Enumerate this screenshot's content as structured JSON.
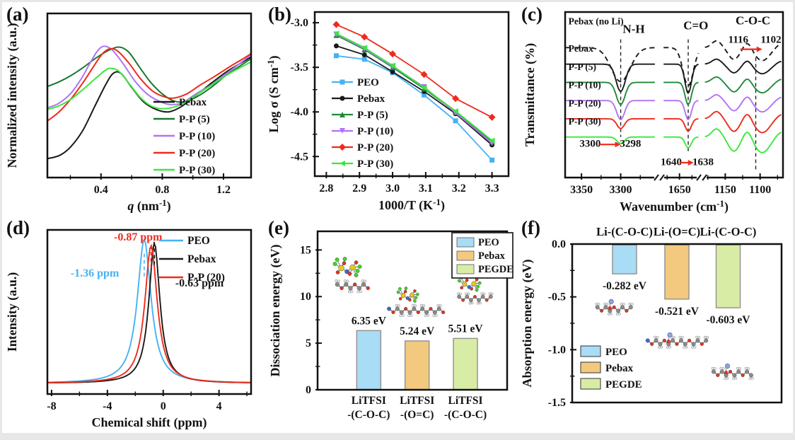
{
  "figure": {
    "background": "#ffffff",
    "frame_color": "#e7e7e7",
    "panel_letters": {
      "a": "(a)",
      "b": "(b)",
      "c": "(c)",
      "d": "(d)",
      "e": "(e)",
      "f": "(f)"
    }
  },
  "chart_data": [
    {
      "panel": "a",
      "type": "line",
      "xlabel": [
        "q (nm",
        "-1",
        ")"
      ],
      "xlabel_italic_first": true,
      "ylabel": "Normalized intensity (a.u.)",
      "xlim": [
        0.05,
        1.38
      ],
      "xticks": [
        0.4,
        0.8,
        1.2
      ],
      "xminor": [
        0.2,
        0.6,
        1.0
      ],
      "grid": false,
      "legend_position": "bottom-right",
      "series": [
        {
          "name": "Pebax",
          "color": "#1a1a1a",
          "points": [
            [
              0.05,
              0.115
            ],
            [
              0.13,
              0.135
            ],
            [
              0.2,
              0.185
            ],
            [
              0.28,
              0.285
            ],
            [
              0.36,
              0.435
            ],
            [
              0.43,
              0.565
            ],
            [
              0.48,
              0.635
            ],
            [
              0.53,
              0.635
            ],
            [
              0.6,
              0.55
            ],
            [
              0.68,
              0.46
            ],
            [
              0.76,
              0.415
            ],
            [
              0.84,
              0.4
            ],
            [
              0.92,
              0.43
            ],
            [
              1.02,
              0.5
            ],
            [
              1.12,
              0.575
            ],
            [
              1.22,
              0.645
            ],
            [
              1.3,
              0.69
            ],
            [
              1.38,
              0.735
            ]
          ]
        },
        {
          "name": "P-P (5)",
          "color": "#177A2E",
          "points": [
            [
              0.05,
              0.555
            ],
            [
              0.13,
              0.585
            ],
            [
              0.21,
              0.625
            ],
            [
              0.29,
              0.675
            ],
            [
              0.37,
              0.73
            ],
            [
              0.45,
              0.775
            ],
            [
              0.52,
              0.795
            ],
            [
              0.58,
              0.765
            ],
            [
              0.65,
              0.675
            ],
            [
              0.72,
              0.585
            ],
            [
              0.8,
              0.51
            ],
            [
              0.88,
              0.465
            ],
            [
              0.96,
              0.465
            ],
            [
              1.04,
              0.5
            ],
            [
              1.12,
              0.55
            ],
            [
              1.22,
              0.625
            ],
            [
              1.3,
              0.675
            ],
            [
              1.38,
              0.725
            ]
          ]
        },
        {
          "name": "P-P (10)",
          "color": "#B273F2",
          "points": [
            [
              0.05,
              0.425
            ],
            [
              0.12,
              0.45
            ],
            [
              0.2,
              0.51
            ],
            [
              0.27,
              0.6
            ],
            [
              0.33,
              0.7
            ],
            [
              0.38,
              0.775
            ],
            [
              0.42,
              0.8
            ],
            [
              0.47,
              0.78
            ],
            [
              0.54,
              0.7
            ],
            [
              0.62,
              0.59
            ],
            [
              0.7,
              0.51
            ],
            [
              0.78,
              0.465
            ],
            [
              0.85,
              0.445
            ],
            [
              0.93,
              0.455
            ],
            [
              1.02,
              0.51
            ],
            [
              1.12,
              0.565
            ],
            [
              1.22,
              0.635
            ],
            [
              1.3,
              0.69
            ],
            [
              1.38,
              0.75
            ]
          ]
        },
        {
          "name": "P-P (20)",
          "color": "#EE2B1D",
          "points": [
            [
              0.05,
              0.345
            ],
            [
              0.12,
              0.395
            ],
            [
              0.2,
              0.475
            ],
            [
              0.28,
              0.575
            ],
            [
              0.35,
              0.675
            ],
            [
              0.41,
              0.755
            ],
            [
              0.46,
              0.785
            ],
            [
              0.51,
              0.77
            ],
            [
              0.58,
              0.7
            ],
            [
              0.66,
              0.6
            ],
            [
              0.74,
              0.525
            ],
            [
              0.82,
              0.49
            ],
            [
              0.88,
              0.485
            ],
            [
              0.96,
              0.51
            ],
            [
              1.05,
              0.565
            ],
            [
              1.14,
              0.615
            ],
            [
              1.24,
              0.675
            ],
            [
              1.32,
              0.72
            ],
            [
              1.38,
              0.755
            ]
          ]
        },
        {
          "name": "P-P (30)",
          "color": "#3BE83B",
          "points": [
            [
              0.05,
              0.415
            ],
            [
              0.12,
              0.435
            ],
            [
              0.2,
              0.475
            ],
            [
              0.28,
              0.535
            ],
            [
              0.36,
              0.6
            ],
            [
              0.43,
              0.655
            ],
            [
              0.47,
              0.665
            ],
            [
              0.52,
              0.645
            ],
            [
              0.59,
              0.565
            ],
            [
              0.66,
              0.485
            ],
            [
              0.73,
              0.435
            ],
            [
              0.8,
              0.42
            ],
            [
              0.88,
              0.43
            ],
            [
              0.96,
              0.465
            ],
            [
              1.05,
              0.52
            ],
            [
              1.14,
              0.575
            ],
            [
              1.24,
              0.635
            ],
            [
              1.32,
              0.675
            ],
            [
              1.38,
              0.705
            ]
          ]
        }
      ]
    },
    {
      "panel": "b",
      "type": "line",
      "xlabel": [
        "1000/T (K",
        "-1",
        ")"
      ],
      "ylabel": [
        "Log σ (S cm",
        "-1",
        ")"
      ],
      "xlim": [
        2.765,
        3.35
      ],
      "ylim": [
        -4.72,
        -2.88
      ],
      "xticks": [
        2.8,
        2.9,
        3.0,
        3.1,
        3.2,
        3.3
      ],
      "xminor": [
        2.85,
        2.95,
        3.05,
        3.15,
        3.25
      ],
      "yticks": [
        -3.0,
        -3.5,
        -4.0,
        -4.5
      ],
      "yminor": [
        -3.25,
        -3.75,
        -4.25
      ],
      "x": [
        2.83,
        2.915,
        3.0,
        3.095,
        3.19,
        3.3
      ],
      "series": [
        {
          "name": "PEO",
          "color": "#45B2F2",
          "marker": "square",
          "values": [
            -3.37,
            -3.41,
            -3.56,
            -3.81,
            -4.1,
            -4.54
          ]
        },
        {
          "name": "Pebax",
          "color": "#1a1a1a",
          "marker": "circle",
          "values": [
            -3.26,
            -3.36,
            -3.55,
            -3.77,
            -4.02,
            -4.37
          ]
        },
        {
          "name": "P-P (5)",
          "color": "#1E8B3A",
          "marker": "triangle-up",
          "values": [
            -3.14,
            -3.3,
            -3.5,
            -3.74,
            -4.0,
            -4.33
          ]
        },
        {
          "name": "P-P (10)",
          "color": "#B273F2",
          "marker": "triangle-down",
          "values": [
            -3.13,
            -3.29,
            -3.49,
            -3.72,
            -4.01,
            -4.35
          ]
        },
        {
          "name": "P-P (20)",
          "color": "#EE2B1D",
          "marker": "diamond",
          "values": [
            -3.02,
            -3.16,
            -3.35,
            -3.58,
            -3.85,
            -4.06
          ]
        },
        {
          "name": "P-P (30)",
          "color": "#3BE83B",
          "marker": "triangle-left",
          "values": [
            -3.12,
            -3.28,
            -3.48,
            -3.73,
            -3.99,
            -4.32
          ]
        }
      ]
    },
    {
      "panel": "c",
      "type": "line",
      "xlabel": [
        "Wavenumber (cm",
        "-1",
        ")"
      ],
      "ylabel": "Transmittance (%)",
      "xticks": [
        {
          "label": "3350",
          "f": 0.075
        },
        {
          "label": "3300",
          "f": 0.255
        },
        {
          "label": "1650",
          "f": 0.525
        },
        {
          "label": "1150",
          "f": 0.735
        },
        {
          "label": "1100",
          "f": 0.895
        }
      ],
      "xminor_f": [
        0.165,
        0.345,
        0.468,
        0.582,
        0.655,
        0.815,
        0.975
      ],
      "breaks_f": [
        0.432,
        0.627
      ],
      "guides": [
        {
          "f": 0.255,
          "y1": 0.165,
          "y2": 0.755
        },
        {
          "f": 0.565,
          "y1": 0.165,
          "y2": 0.85
        },
        {
          "f": 0.875,
          "y1": 0.275,
          "y2": 0.955
        }
      ],
      "annotations": [
        {
          "text": "N-H",
          "f": 0.315,
          "y": 0.125,
          "size": 17
        },
        {
          "text": "C=O",
          "f": 0.6,
          "y": 0.105,
          "size": 17
        },
        {
          "text": "C-O-C",
          "f": 0.862,
          "y": 0.075,
          "size": 17
        },
        {
          "text": "1116",
          "f": 0.795,
          "y": 0.185,
          "size": 15
        },
        {
          "text": "1102",
          "f": 0.945,
          "y": 0.185,
          "size": 15
        },
        {
          "text": "3300",
          "f": 0.115,
          "y": 0.815,
          "size": 15
        },
        {
          "text": "3298",
          "f": 0.3,
          "y": 0.815,
          "size": 15
        },
        {
          "text": "1640",
          "f": 0.487,
          "y": 0.925,
          "size": 15
        },
        {
          "text": "1638",
          "f": 0.633,
          "y": 0.925,
          "size": 15
        }
      ],
      "arrows": [
        {
          "x1f": 0.805,
          "x2f": 0.905,
          "y": 0.225
        },
        {
          "x1f": 0.158,
          "x2f": 0.255,
          "y": 0.8
        },
        {
          "x1f": 0.525,
          "x2f": 0.59,
          "y": 0.91
        }
      ],
      "traces": [
        {
          "label": "Pebax (no Li)",
          "color": "#1a1a1a",
          "dashed": true,
          "base": 0.215,
          "label_y": 0.075,
          "dipA": 0.205,
          "dipB": 0.23,
          "ampC": 0.075,
          "wA": 0.062,
          "wB": 0.034
        },
        {
          "label": "Pebax",
          "color": "#1a1a1a",
          "dashed": false,
          "base": 0.315,
          "label_y": 0.24,
          "dipA": 0.165,
          "dipB": 0.175,
          "ampC": 0.055,
          "wA": 0.03,
          "wB": 0.021
        },
        {
          "label": "P-P (5)",
          "color": "#1E8B3A",
          "dashed": false,
          "base": 0.425,
          "label_y": 0.35,
          "dipA": 0.135,
          "dipB": 0.135,
          "ampC": 0.06,
          "wA": 0.028,
          "wB": 0.02
        },
        {
          "label": "P-P (10)",
          "color": "#B273F2",
          "dashed": false,
          "base": 0.535,
          "label_y": 0.46,
          "dipA": 0.115,
          "dipB": 0.115,
          "ampC": 0.065,
          "wA": 0.026,
          "wB": 0.02
        },
        {
          "label": "P-P (20)",
          "color": "#EE2B1D",
          "dashed": false,
          "base": 0.645,
          "label_y": 0.57,
          "dipA": 0.06,
          "dipB": 0.075,
          "ampC": 0.08,
          "wA": 0.024,
          "wB": 0.02
        },
        {
          "label": "P-P (30)",
          "color": "#3BE83B",
          "dashed": false,
          "base": 0.755,
          "label_y": 0.68,
          "dipA": 0.04,
          "dipB": 0.065,
          "ampC": 0.09,
          "wA": 0.024,
          "wB": 0.02
        }
      ]
    },
    {
      "panel": "d",
      "type": "line",
      "xlabel": [
        "Chemical shift (ppm)"
      ],
      "ylabel": "Intensity (a.u.)",
      "xlim": [
        -8.3,
        6.3
      ],
      "xticks": [
        -8,
        -4,
        0,
        4
      ],
      "xminor": [
        -6,
        -2,
        2,
        6
      ],
      "baseline": 0.935,
      "series": [
        {
          "name": "PEO",
          "color": "#45B2F2",
          "peak_ppm": -1.36,
          "height": 0.875,
          "width": 0.6
        },
        {
          "name": "Pebax",
          "color": "#1a1a1a",
          "peak_ppm": -0.63,
          "height": 0.855,
          "width": 0.48
        },
        {
          "name": "P-P (20)",
          "color": "#EE2B1D",
          "peak_ppm": -0.87,
          "height": 0.84,
          "width": 0.54
        }
      ],
      "peak_markers": [
        {
          "ppm": -1.36,
          "color": "#45B2F2",
          "y1": 0.145,
          "y2": 0.3
        },
        {
          "ppm": -0.87,
          "color": "#EE2B1D",
          "y1": 0.095,
          "y2": 0.25
        },
        {
          "ppm": -0.63,
          "color": "#1a1a1a",
          "y1": 0.075,
          "y2": 0.23
        }
      ],
      "annotations": [
        {
          "text": "-1.36 ppm",
          "x": -4.9,
          "y": 0.285,
          "color": "#45B2F2"
        },
        {
          "text": "-0.87 ppm",
          "x": -1.8,
          "y": 0.065,
          "color": "#EE2B1D"
        },
        {
          "text": "-0.63 ppm",
          "x": 2.6,
          "y": 0.345,
          "color": "#1a1a1a"
        }
      ],
      "legend": [
        {
          "name": "PEO",
          "color": "#45B2F2"
        },
        {
          "name": "Pebax",
          "color": "#1a1a1a"
        },
        {
          "name": "P-P (20)",
          "color": "#EE2B1D"
        }
      ]
    },
    {
      "panel": "e",
      "type": "bar",
      "ylabel": "Dissociation energy (eV)",
      "ylim": [
        0,
        17
      ],
      "yticks": [
        0,
        5,
        10,
        15
      ],
      "yminor": [
        2.5,
        7.5,
        12.5
      ],
      "categories": [
        [
          "LiTFSI",
          "-(C-O-C)"
        ],
        [
          "LiTFSI",
          "-(O=C)"
        ],
        [
          "LiTFSI",
          "-(C-O-C)"
        ]
      ],
      "values": [
        6.35,
        5.24,
        5.51
      ],
      "value_labels": [
        "6.35 eV",
        "5.24 eV",
        "5.51 eV"
      ],
      "bar_centers_f": [
        0.27,
        0.525,
        0.78
      ],
      "bar_fills": [
        "#A9DCF5",
        "#F2C97E",
        "#D9ECA6"
      ],
      "bar_stroke": "#8f8f8f",
      "legend": {
        "boxed": true,
        "items": [
          {
            "name": "PEO",
            "fill": "#A9DCF5"
          },
          {
            "name": "Pebax",
            "fill": "#F2C97E"
          },
          {
            "name": "PEGDE",
            "fill": "#D9ECA6"
          }
        ]
      },
      "molecules": [
        {
          "kind": "cluster",
          "fx": 0.155,
          "v": 12.9,
          "s": 1.0
        },
        {
          "kind": "chain",
          "fx": 0.185,
          "v": 11.1,
          "n": 8,
          "s": 1.0
        },
        {
          "kind": "cluster",
          "fx": 0.475,
          "v": 10.0,
          "s": 0.78
        },
        {
          "kind": "chain",
          "fx": 0.52,
          "v": 8.5,
          "n": 14,
          "s": 0.95,
          "nStart": true
        },
        {
          "kind": "cluster",
          "fx": 0.8,
          "v": 11.2,
          "s": 0.82
        },
        {
          "kind": "chain",
          "fx": 0.83,
          "v": 9.8,
          "n": 9,
          "s": 0.9
        }
      ]
    },
    {
      "panel": "f",
      "type": "bar",
      "ylabel": "Absorption energy (eV)",
      "ylim": [
        -1.5,
        0
      ],
      "yticks": [
        {
          "v": 0,
          "label": "0.0"
        },
        {
          "v": -0.5,
          "label": "-0.5"
        },
        {
          "v": -1.0,
          "label": "-1.0"
        },
        {
          "v": -1.5,
          "label": "-1.5"
        }
      ],
      "yminor": [
        -0.25,
        -0.75,
        -1.25
      ],
      "headers": [
        "Li-(C-O-C)",
        "Li-(O=C)",
        "Li-(C-O-C)"
      ],
      "values": [
        -0.282,
        -0.521,
        -0.603
      ],
      "value_labels": [
        "-0.282 eV",
        "-0.521 eV",
        "-0.603 eV"
      ],
      "bar_centers_f": [
        0.25,
        0.5,
        0.745
      ],
      "bar_fills": [
        "#A9DCF5",
        "#F2C97E",
        "#D9ECA6"
      ],
      "bar_stroke": "#8f8f8f",
      "legend": {
        "boxed": false,
        "items": [
          {
            "name": "PEO",
            "fill": "#A9DCF5"
          },
          {
            "name": "Pebax",
            "fill": "#F2C97E"
          },
          {
            "name": "PEGDE",
            "fill": "#D9ECA6"
          }
        ]
      },
      "molecules": [
        {
          "kind": "chain",
          "fx": 0.2,
          "v": -0.615,
          "n": 9,
          "s": 0.95,
          "li": true
        },
        {
          "kind": "chain",
          "fx": 0.5,
          "v": -0.93,
          "n": 15,
          "s": 0.95,
          "li": true,
          "nStart": true
        },
        {
          "kind": "chain",
          "fx": 0.765,
          "v": -1.225,
          "n": 10,
          "s": 0.95,
          "li": true
        }
      ]
    }
  ]
}
